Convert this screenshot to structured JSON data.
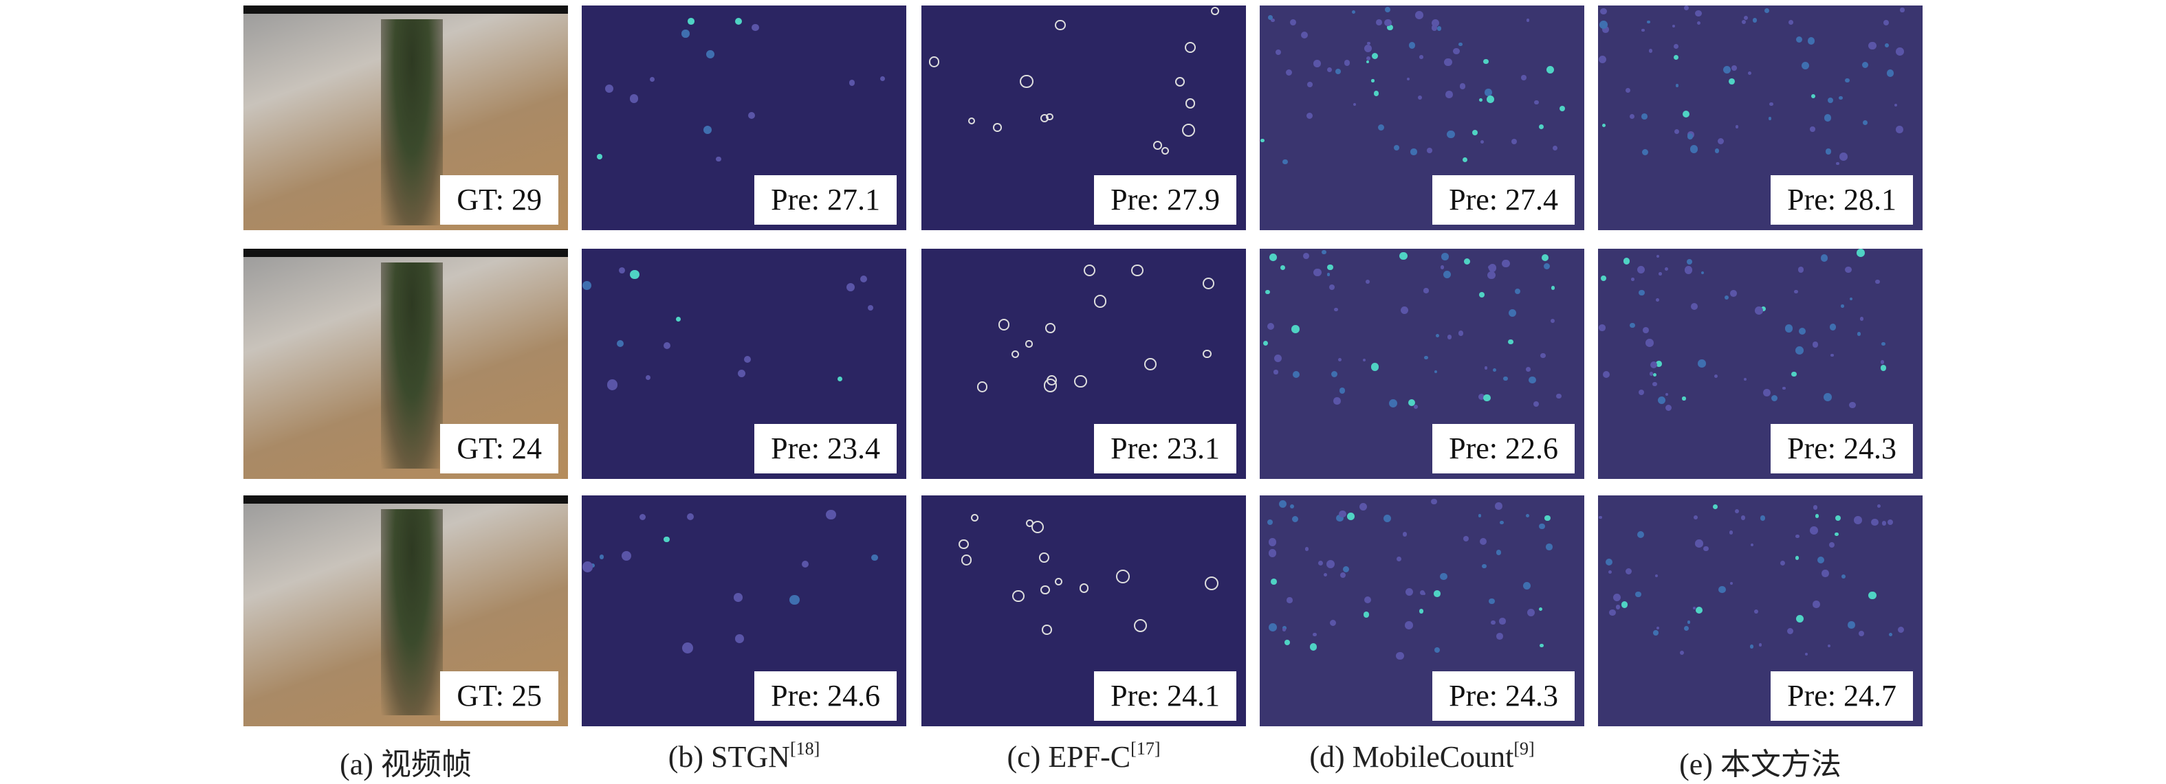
{
  "figure": {
    "columns": [
      {
        "caption": "(a) 视频帧"
      },
      {
        "caption": "(b) STGN",
        "ref": "[18]"
      },
      {
        "caption": "(c) EPF-C",
        "ref": "[17]"
      },
      {
        "caption": "(d) MobileCount",
        "ref": "[9]"
      },
      {
        "caption": "(e) 本文方法"
      }
    ],
    "rows": [
      [
        "GT: 29",
        "Pre: 27.1",
        "Pre: 27.9",
        "Pre: 27.4",
        "Pre: 28.1"
      ],
      [
        "GT: 24",
        "Pre: 23.4",
        "Pre: 23.1",
        "Pre: 22.6",
        "Pre: 24.3"
      ],
      [
        "GT: 25",
        "Pre: 24.6",
        "Pre: 24.1",
        "Pre: 24.3",
        "Pre: 24.7"
      ]
    ]
  }
}
